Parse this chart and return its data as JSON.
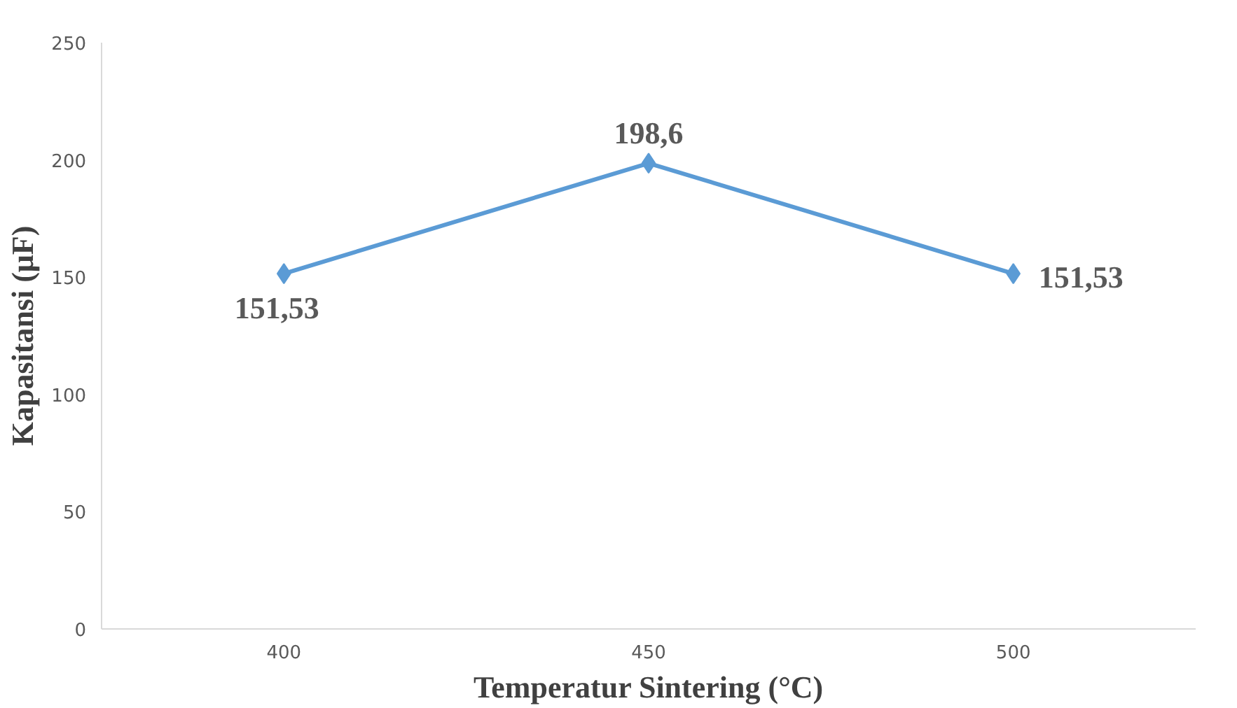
{
  "chart_data": {
    "type": "line",
    "xlabel": "Temperatur Sintering (°C)",
    "ylabel": "Kapasitansi (μF)",
    "categories": [
      "400",
      "450",
      "500"
    ],
    "series": [
      {
        "color": "#5b9bd5",
        "values": [
          151.53,
          198.6,
          151.53
        ]
      }
    ],
    "value_labels": [
      "151,53",
      "198,6",
      "151,53"
    ],
    "ylim": [
      0,
      250
    ],
    "yticks": [
      0,
      50,
      100,
      150,
      200,
      250
    ],
    "grid": false,
    "marker": "diamond",
    "line_style": "solid"
  }
}
